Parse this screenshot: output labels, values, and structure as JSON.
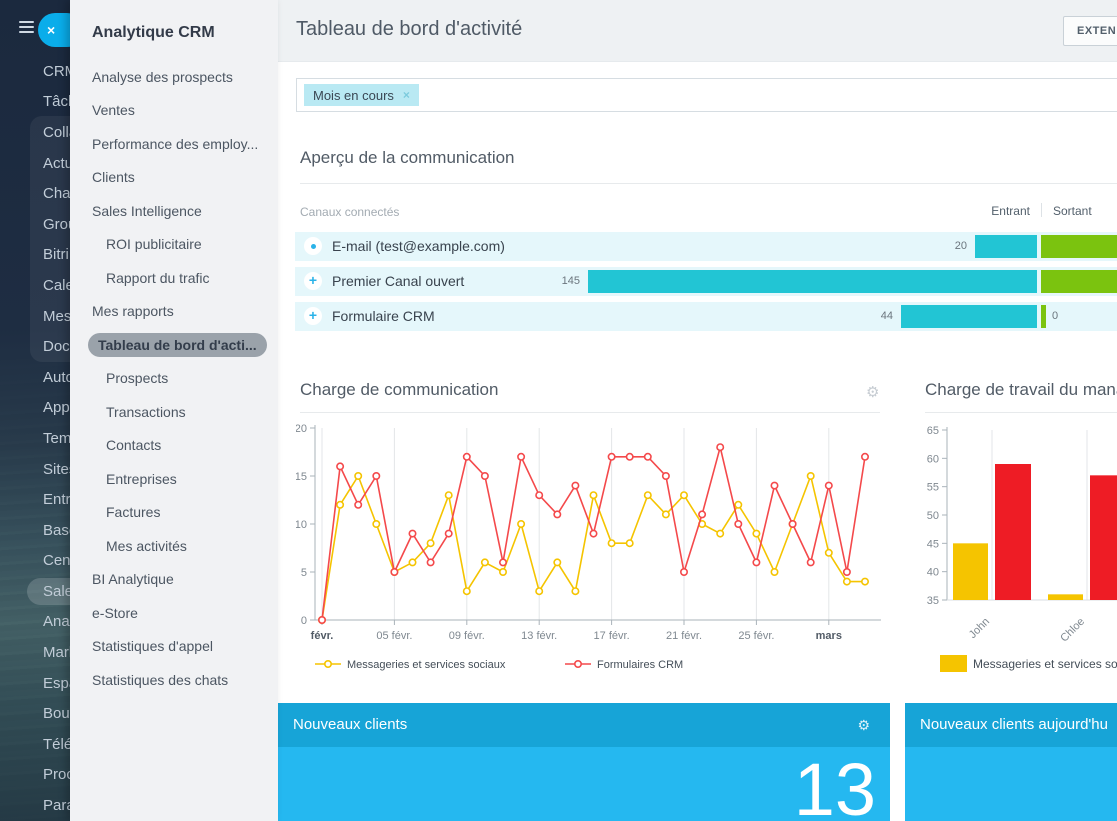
{
  "left_rail": {
    "close_button_label": "×",
    "items": [
      {
        "label": "CRM"
      },
      {
        "label": "Tâch"
      },
      {
        "label": "Colla",
        "grouped": true
      },
      {
        "label": "Actu",
        "grouped": true
      },
      {
        "label": "Chat",
        "grouped": true
      },
      {
        "label": "Grou",
        "grouped": true
      },
      {
        "label": "Bitri",
        "grouped": true
      },
      {
        "label": "Cale",
        "grouped": true
      },
      {
        "label": "Mess",
        "grouped": true
      },
      {
        "label": "Docu",
        "grouped": true
      },
      {
        "label": "Auto"
      },
      {
        "label": "Appl"
      },
      {
        "label": "Tem"
      },
      {
        "label": "Sites"
      },
      {
        "label": "Entr"
      },
      {
        "label": "Base"
      },
      {
        "label": "Cent"
      },
      {
        "label": "Sales",
        "selected": true
      },
      {
        "label": "Anal"
      },
      {
        "label": "Mark"
      },
      {
        "label": "Espa"
      },
      {
        "label": "Bout"
      },
      {
        "label": "Télé"
      },
      {
        "label": "Proc"
      },
      {
        "label": "Para"
      }
    ]
  },
  "sidebar": {
    "title": "Analytique CRM",
    "items": [
      {
        "label": "Analyse des prospects"
      },
      {
        "label": "Ventes"
      },
      {
        "label": "Performance des employ..."
      },
      {
        "label": "Clients"
      },
      {
        "label": "Sales Intelligence"
      },
      {
        "label": "ROI publicitaire",
        "indent": true
      },
      {
        "label": "Rapport du trafic",
        "indent": true
      },
      {
        "label": "Mes rapports"
      },
      {
        "label": "Tableau de bord d'acti...",
        "indent": true,
        "selected": true
      },
      {
        "label": "Prospects",
        "indent": true
      },
      {
        "label": "Transactions",
        "indent": true
      },
      {
        "label": "Contacts",
        "indent": true
      },
      {
        "label": "Entreprises",
        "indent": true
      },
      {
        "label": "Factures",
        "indent": true
      },
      {
        "label": "Mes activités",
        "indent": true
      },
      {
        "label": "BI Analytique"
      },
      {
        "label": "e-Store"
      },
      {
        "label": "Statistiques d'appel"
      },
      {
        "label": "Statistiques des chats"
      }
    ]
  },
  "header": {
    "title": "Tableau de bord d'activité",
    "extension_button_label": "EXTEN"
  },
  "filter": {
    "chip_label": "Mois en cours",
    "chip_close": "×"
  },
  "communication_overview": {
    "title": "Aperçu de la communication",
    "channels_label": "Canaux connectés",
    "col_in": "Entrant",
    "col_out": "Sortant",
    "rows": [
      {
        "icon": "dot",
        "label": "E-mail (test@example.com)",
        "in_value": 20,
        "out_value": null
      },
      {
        "icon": "plus",
        "label": "Premier Canal ouvert",
        "in_value": 145,
        "out_value": null
      },
      {
        "icon": "plus",
        "label": "Formulaire CRM",
        "in_value": 44,
        "out_value": 0
      }
    ]
  },
  "chart_data": [
    {
      "type": "line",
      "title": "Charge de communication",
      "categories": [
        "01 févr.",
        "02 févr.",
        "03 févr.",
        "04 févr.",
        "05 févr.",
        "06 févr.",
        "07 févr.",
        "08 févr.",
        "09 févr.",
        "10 févr.",
        "11 févr.",
        "12 févr.",
        "13 févr.",
        "14 févr.",
        "15 févr.",
        "16 févr.",
        "17 févr.",
        "18 févr.",
        "19 févr.",
        "20 févr.",
        "21 févr.",
        "22 févr.",
        "23 févr.",
        "24 févr.",
        "25 févr.",
        "26 févr.",
        "27 févr.",
        "28 févr.",
        "01 mars",
        "02 mars",
        "03 mars"
      ],
      "x_tick_labels": [
        "févr.",
        "05 févr.",
        "09 févr.",
        "13 févr.",
        "17 févr.",
        "21 févr.",
        "25 févr.",
        "mars"
      ],
      "x_tick_indices": [
        0,
        4,
        8,
        12,
        16,
        20,
        24,
        28
      ],
      "ylim": [
        0,
        20
      ],
      "yticks": [
        0,
        5,
        10,
        15,
        20
      ],
      "grid": true,
      "legend_position": "bottom",
      "series": [
        {
          "name": "Messageries et services sociaux",
          "color": "#f5c400",
          "values": [
            0,
            12,
            15,
            10,
            5,
            6,
            8,
            13,
            3,
            6,
            5,
            10,
            3,
            6,
            3,
            13,
            8,
            8,
            13,
            11,
            13,
            10,
            9,
            12,
            9,
            5,
            10,
            15,
            7,
            4,
            4
          ]
        },
        {
          "name": "Formulaires CRM",
          "color": "#f4494b",
          "values": [
            0,
            16,
            12,
            15,
            5,
            9,
            6,
            9,
            17,
            15,
            6,
            17,
            13,
            11,
            14,
            9,
            17,
            17,
            17,
            15,
            5,
            11,
            18,
            10,
            6,
            14,
            10,
            6,
            14,
            5,
            17
          ]
        }
      ]
    },
    {
      "type": "bar",
      "title": "Charge de travail du manag",
      "categories": [
        "John",
        "Chloe"
      ],
      "ylim": [
        35,
        65
      ],
      "yticks": [
        35,
        40,
        45,
        50,
        55,
        60,
        65
      ],
      "grid": true,
      "legend_position": "bottom",
      "series": [
        {
          "name": "Messageries et services sociaux",
          "color": "#f5c400",
          "values": [
            45,
            36
          ]
        },
        {
          "name": "",
          "color": "#ee1c25",
          "values": [
            59,
            57
          ]
        }
      ]
    }
  ],
  "cards": [
    {
      "title": "Nouveaux clients",
      "value": "13",
      "gear": true
    },
    {
      "title": "Nouveaux clients aujourd'hu",
      "value": "",
      "gear": false
    }
  ],
  "colors": {
    "accent_blue": "#0aadea",
    "bar_in": "#22c5d4",
    "bar_out": "#7bc30f",
    "card_header": "#17a4d7",
    "card_body": "#25b8f0",
    "series_yellow": "#f5c400",
    "series_red_line": "#f4494b",
    "series_red_bar": "#ee1c25"
  }
}
